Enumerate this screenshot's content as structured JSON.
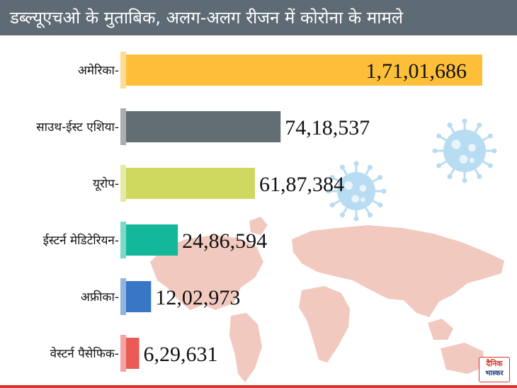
{
  "header": {
    "title": "डब्ल्यूएचओ के मुताबिक, अलग-अलग रीजन में कोरोना के मामले"
  },
  "logo": {
    "line1": "दैनिक",
    "line2": "भास्कर"
  },
  "colors": {
    "header_bg": "#5f6b74",
    "map": "#f2c9bf",
    "virus": "#b8dcf2"
  },
  "icons": [
    "world-map-icon",
    "virus-icon"
  ],
  "chart_data": {
    "type": "bar",
    "orientation": "horizontal",
    "title": "डब्ल्यूएचओ के मुताबिक, अलग-अलग रीजन में कोरोना के मामले",
    "xlabel": "",
    "ylabel": "",
    "grid": false,
    "categories": [
      "अमेरिका",
      "साउथ-ईस्ट एशिया",
      "यूरोप",
      "ईस्टर्न मेडिटेरियन",
      "अफ्रीका",
      "वेस्टर्न पैसेफिक"
    ],
    "values": [
      17101686,
      7418537,
      6187384,
      2486594,
      1202973,
      629631
    ],
    "value_labels": [
      "1,71,01,686",
      "74,18,537",
      "61,87,384",
      "24,86,594",
      "12,02,973",
      "6,29,631"
    ],
    "colors": [
      "#fdbf3a",
      "#626d74",
      "#cfd85f",
      "#13b89a",
      "#3877c6",
      "#ea5a55"
    ],
    "xlim": [
      0,
      17101686
    ]
  }
}
